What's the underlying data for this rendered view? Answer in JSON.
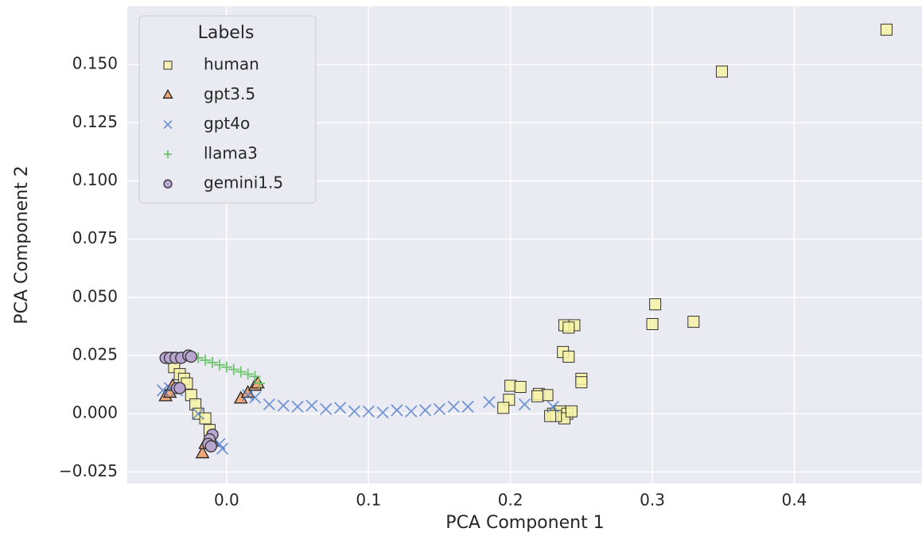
{
  "chart_data": {
    "type": "scatter",
    "xlabel": "PCA Component 1",
    "ylabel": "PCA Component 2",
    "legend_title": "Labels",
    "legend": "upper left",
    "grid": true,
    "xlim": [
      -0.07,
      0.49
    ],
    "ylim": [
      -0.03,
      0.175
    ],
    "xticks": [
      {
        "value": 0.0,
        "label": "0.0"
      },
      {
        "value": 0.1,
        "label": "0.1"
      },
      {
        "value": 0.2,
        "label": "0.2"
      },
      {
        "value": 0.3,
        "label": "0.3"
      },
      {
        "value": 0.4,
        "label": "0.4"
      }
    ],
    "yticks": [
      {
        "value": -0.025,
        "label": "−0.025"
      },
      {
        "value": 0.0,
        "label": "0.000"
      },
      {
        "value": 0.025,
        "label": "0.025"
      },
      {
        "value": 0.05,
        "label": "0.050"
      },
      {
        "value": 0.075,
        "label": "0.075"
      },
      {
        "value": 0.1,
        "label": "0.100"
      },
      {
        "value": 0.125,
        "label": "0.125"
      },
      {
        "value": 0.15,
        "label": "0.150"
      }
    ],
    "series": [
      {
        "name": "human",
        "color": "#f7f3a6",
        "marker": "s",
        "x": [
          0.465,
          0.349,
          0.302,
          0.3,
          0.329,
          0.238,
          0.245,
          0.241,
          0.237,
          0.241,
          0.25,
          0.25,
          0.2,
          0.207,
          0.22,
          0.226,
          0.219,
          0.199,
          0.195,
          0.23,
          0.235,
          0.24,
          0.238,
          0.232,
          0.228,
          0.243,
          -0.04,
          -0.037,
          -0.033,
          -0.03,
          -0.028,
          -0.025,
          -0.022,
          -0.02,
          -0.015,
          -0.012
        ],
        "y": [
          0.165,
          0.147,
          0.047,
          0.0385,
          0.0395,
          0.038,
          0.038,
          0.037,
          0.0265,
          0.0245,
          0.015,
          0.0135,
          0.012,
          0.0115,
          0.0085,
          0.008,
          0.0075,
          0.006,
          0.0025,
          0.0,
          0.001,
          0.0,
          -0.002,
          -0.001,
          -0.001,
          0.001,
          0.024,
          0.02,
          0.017,
          0.015,
          0.013,
          0.008,
          0.004,
          0.0,
          -0.002,
          -0.007
        ]
      },
      {
        "name": "gpt3.5",
        "color": "#f0a878",
        "marker": "^",
        "x": [
          -0.043,
          -0.04,
          -0.038,
          0.01,
          0.015,
          0.02,
          0.022,
          -0.017,
          -0.015,
          -0.012,
          -0.01
        ],
        "y": [
          0.0075,
          0.009,
          0.012,
          0.0065,
          0.009,
          0.012,
          0.013,
          -0.017,
          -0.013,
          -0.011,
          -0.012
        ]
      },
      {
        "name": "gpt4o",
        "color": "#4a78c8",
        "marker": "x",
        "x": [
          -0.045,
          -0.04,
          -0.035,
          -0.02,
          -0.01,
          -0.005,
          -0.003,
          0.015,
          0.02,
          0.03,
          0.04,
          0.05,
          0.06,
          0.07,
          0.08,
          0.09,
          0.1,
          0.11,
          0.12,
          0.13,
          0.14,
          0.15,
          0.16,
          0.17,
          0.185,
          0.21,
          0.23
        ],
        "y": [
          0.01,
          0.011,
          0.01,
          0.0,
          -0.01,
          -0.013,
          -0.015,
          0.008,
          0.007,
          0.004,
          0.0035,
          0.003,
          0.0035,
          0.002,
          0.0025,
          0.001,
          0.001,
          0.0005,
          0.0015,
          0.001,
          0.0015,
          0.002,
          0.003,
          0.003,
          0.005,
          0.004,
          0.003
        ]
      },
      {
        "name": "llama3",
        "color": "#6cc46c",
        "marker": "+",
        "x": [
          -0.025,
          -0.02,
          -0.015,
          -0.01,
          -0.005,
          0.0,
          0.005,
          0.01,
          0.015,
          0.02,
          0.023
        ],
        "y": [
          0.025,
          0.024,
          0.023,
          0.022,
          0.021,
          0.02,
          0.019,
          0.018,
          0.017,
          0.016,
          0.013
        ]
      },
      {
        "name": "gemini1.5",
        "color": "#b8a6d0",
        "marker": "o",
        "x": [
          -0.043,
          -0.04,
          -0.036,
          -0.032,
          -0.027,
          -0.025,
          -0.035,
          -0.033,
          -0.01,
          -0.012,
          -0.013,
          -0.011
        ],
        "y": [
          0.024,
          0.024,
          0.024,
          0.024,
          0.025,
          0.0245,
          0.011,
          0.011,
          -0.009,
          -0.011,
          -0.013,
          -0.014
        ]
      }
    ]
  }
}
